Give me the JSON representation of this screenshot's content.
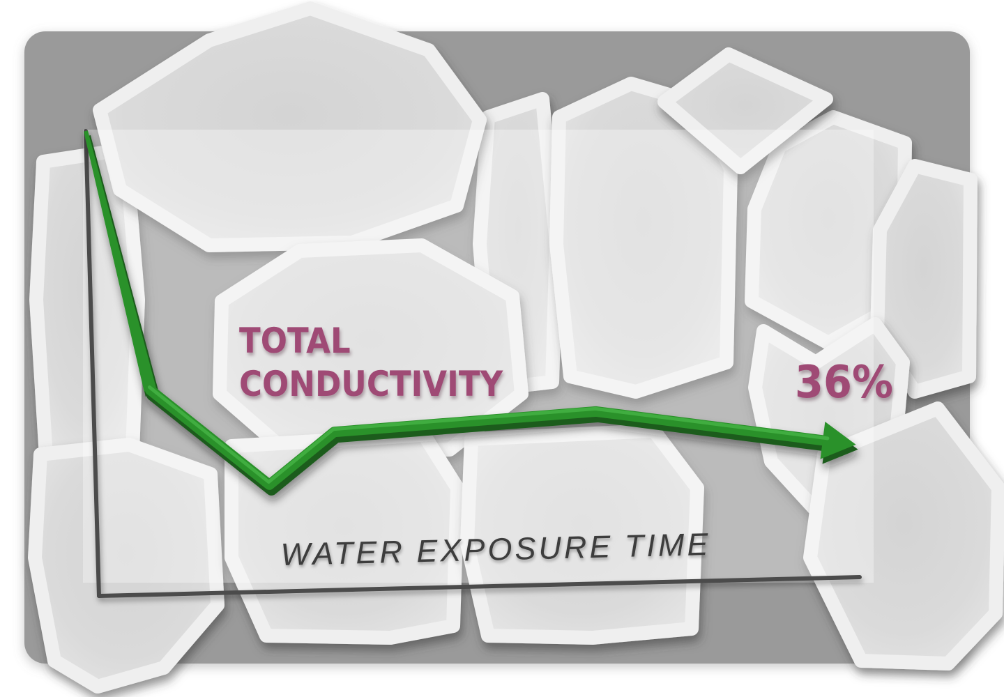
{
  "colors": {
    "page_background": "#ffffff",
    "panel": "#9a9a9a",
    "stone_fill": "#dadada",
    "stone_rim": "#efefef",
    "overlay": "rgba(255,255,255,0.33)",
    "axis": "#4c4c4c",
    "x_label": "#3d3d3d",
    "series_label": "#9f4a75",
    "line_main": "#2a9129",
    "line_light": "#43b041",
    "line_dark": "#1d5c1d"
  },
  "chart_data": {
    "type": "line",
    "title": "",
    "xlabel": "WATER EXPOSURE TIME",
    "ylabel": "TOTAL CONDUCTIVITY",
    "ylabel_lines": [
      "TOTAL",
      "CONDUCTIVITY"
    ],
    "x_axis": {
      "label": "WATER EXPOSURE TIME",
      "ticks": [],
      "range_pct": [
        0,
        100
      ]
    },
    "y_axis": {
      "label": "TOTAL CONDUCTIVITY",
      "ticks": [],
      "range_pct": [
        0,
        100
      ]
    },
    "grid": false,
    "legend": "none",
    "series": [
      {
        "name": "TOTAL CONDUCTIVITY",
        "style": "thick-green-beveled-arrow",
        "points_x_pct": [
          0,
          7.5,
          22.8,
          31.5,
          66,
          100
        ],
        "points_y_pct": [
          100,
          44,
          23,
          34,
          37,
          28.5
        ],
        "final_value_label": "36%"
      }
    ],
    "annotations": [
      {
        "text": "36%"
      }
    ]
  }
}
